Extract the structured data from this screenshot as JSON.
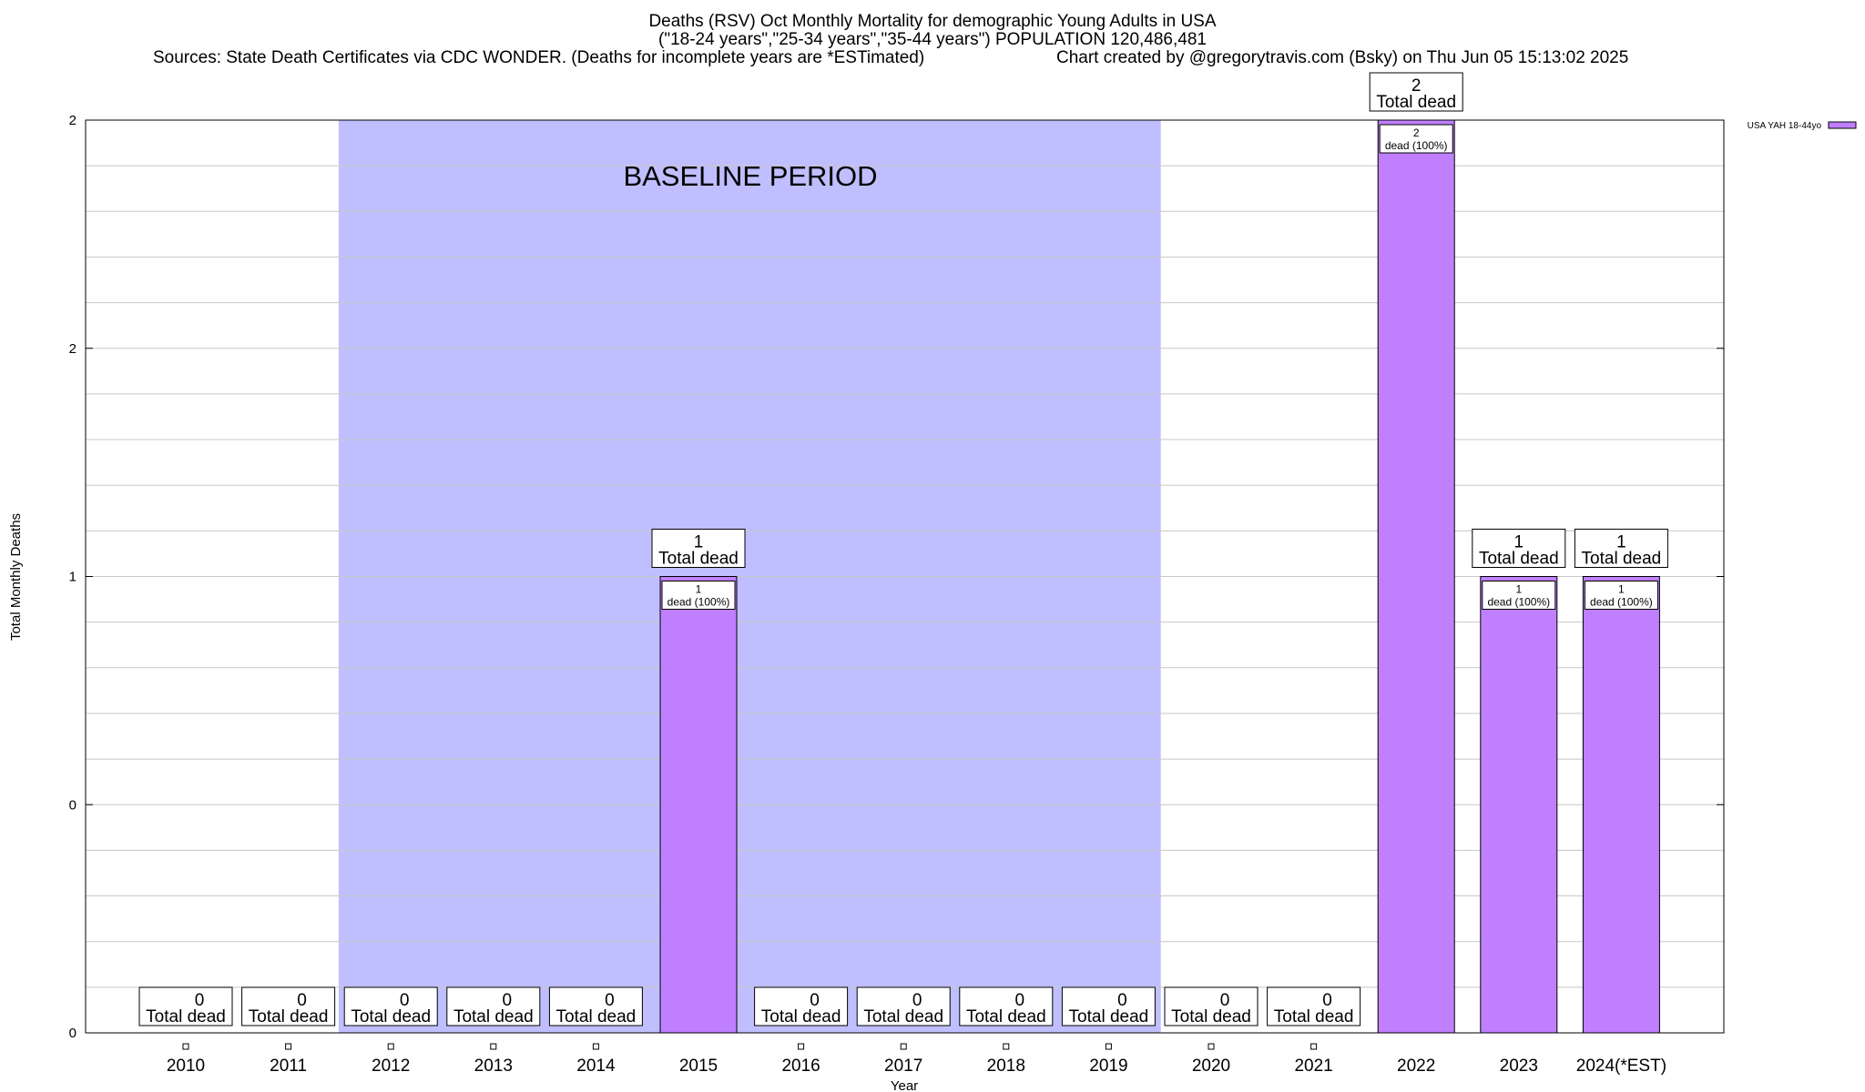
{
  "chart_data": {
    "type": "bar",
    "title_lines": [
      "Deaths (RSV) Oct Monthly Mortality for demographic Young Adults in USA",
      "(\"18-24 years\",\"25-34 years\",\"35-44 years\") POPULATION 120,486,481"
    ],
    "sources": "Sources: State Death Certificates via CDC WONDER. (Deaths for incomplete years are *ESTimated)",
    "credit": "Chart created by @gregorytravis.com (Bsky) on Thu Jun 05 15:13:02 2025",
    "xlabel": "Year",
    "ylabel": "Total Monthly Deaths",
    "categories": [
      "2010",
      "2011",
      "2012",
      "2013",
      "2014",
      "2015",
      "2016",
      "2017",
      "2018",
      "2019",
      "2020",
      "2021",
      "2022",
      "2023",
      "2024(*EST)"
    ],
    "series": [
      {
        "name": "USA YAH 18-44yo",
        "color": "#bf7fff",
        "values": [
          0,
          0,
          0,
          0,
          0,
          1,
          0,
          0,
          0,
          0,
          0,
          0,
          2,
          1,
          1
        ]
      }
    ],
    "ylim": [
      0,
      2
    ],
    "y_ticks": [
      {
        "value": 0,
        "label": "0"
      },
      {
        "value": 0.5,
        "label": "0"
      },
      {
        "value": 1,
        "label": "1"
      },
      {
        "value": 1.5,
        "label": "2"
      },
      {
        "value": 2,
        "label": "2"
      }
    ],
    "grid": true,
    "legend_position": "top-right",
    "total_label_suffix": "Total dead",
    "bar_label_suffix": "dead (100%)",
    "baseline": {
      "label": "BASELINE PERIOD",
      "from": "2012",
      "to": "2019",
      "color": "#bfbfff"
    }
  }
}
